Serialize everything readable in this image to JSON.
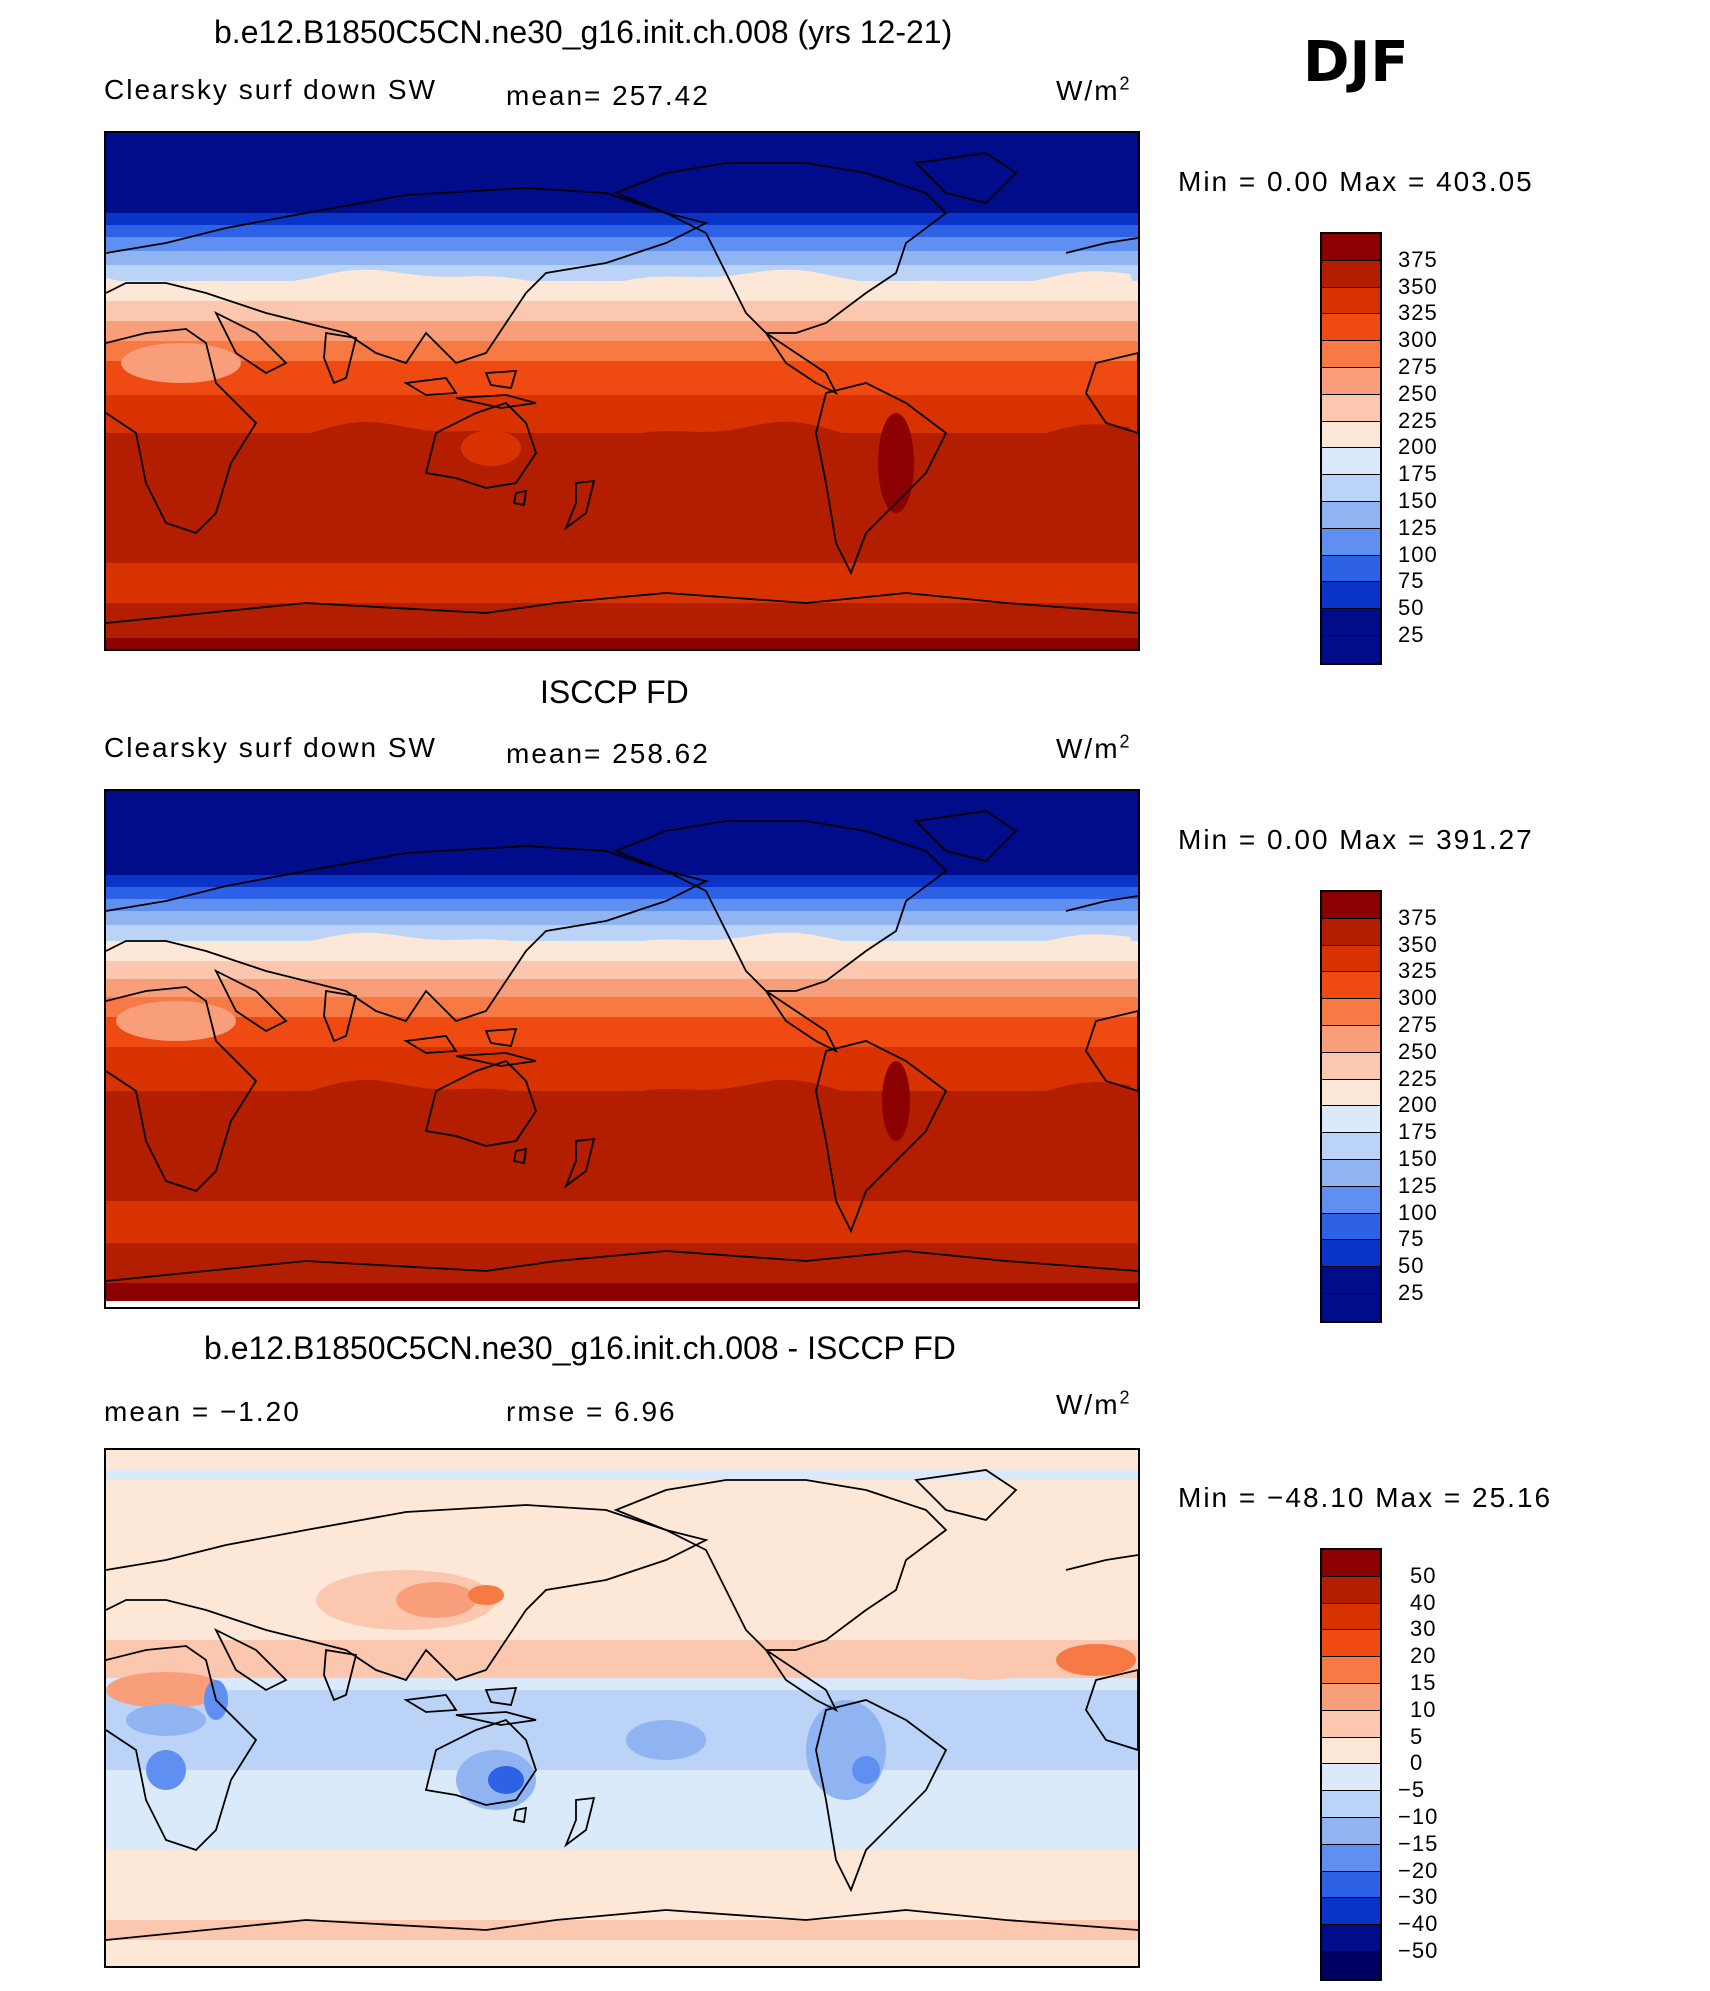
{
  "figure": {
    "season": "DJF"
  },
  "panels": [
    {
      "title": "b.e12.B1850C5CN.ne30_g16.init.ch.008 (yrs 12-21)",
      "left_label": "Clearsky surf down SW",
      "center_label": "mean= 257.42",
      "units": "W/m2",
      "minmax": "Min =    0.00 Max =  403.05",
      "kind": "model",
      "colorbar": {
        "labels": [
          "375",
          "350",
          "325",
          "300",
          "275",
          "250",
          "225",
          "200",
          "175",
          "150",
          "125",
          "100",
          "75",
          "50",
          "25"
        ],
        "colors": [
          "#8b0000",
          "#b31d00",
          "#d83200",
          "#ef4a12",
          "#f77a45",
          "#f99e7a",
          "#fbc7ae",
          "#fde8d7",
          "#dbeafa",
          "#bad3f6",
          "#90b4f2",
          "#5f8ff0",
          "#2e62e6",
          "#0a33c7",
          "#000c89"
        ]
      }
    },
    {
      "title": "ISCCP FD",
      "left_label": "Clearsky surf down SW",
      "center_label": "mean= 258.62",
      "units": "W/m2",
      "minmax": "Min =    0.00 Max =  391.27",
      "kind": "obs",
      "colorbar": {
        "labels": [
          "375",
          "350",
          "325",
          "300",
          "275",
          "250",
          "225",
          "200",
          "175",
          "150",
          "125",
          "100",
          "75",
          "50",
          "25"
        ],
        "colors": [
          "#8b0000",
          "#b31d00",
          "#d83200",
          "#ef4a12",
          "#f77a45",
          "#f99e7a",
          "#fbc7ae",
          "#fde8d7",
          "#dbeafa",
          "#bad3f6",
          "#90b4f2",
          "#5f8ff0",
          "#2e62e6",
          "#0a33c7",
          "#000c89"
        ]
      }
    },
    {
      "title": "b.e12.B1850C5CN.ne30_g16.init.ch.008 - ISCCP FD",
      "left_label": "mean =   −1.20",
      "center_label": "rmse =    6.96",
      "units": "W/m2",
      "minmax": "Min = −48.10 Max =   25.16",
      "kind": "diff",
      "colorbar": {
        "labels": [
          "50",
          "40",
          "30",
          "20",
          "15",
          "10",
          "5",
          "0",
          "−5",
          "−10",
          "−15",
          "−20",
          "−30",
          "−40",
          "−50"
        ],
        "colors": [
          "#8b0000",
          "#b31d00",
          "#d83200",
          "#ef4a12",
          "#f77a45",
          "#f99e7a",
          "#fbc7ae",
          "#fde8d7",
          "#dbeafa",
          "#bad3f6",
          "#90b4f2",
          "#5f8ff0",
          "#2e62e6",
          "#0a33c7",
          "#000c89",
          "#000060"
        ]
      }
    }
  ]
}
